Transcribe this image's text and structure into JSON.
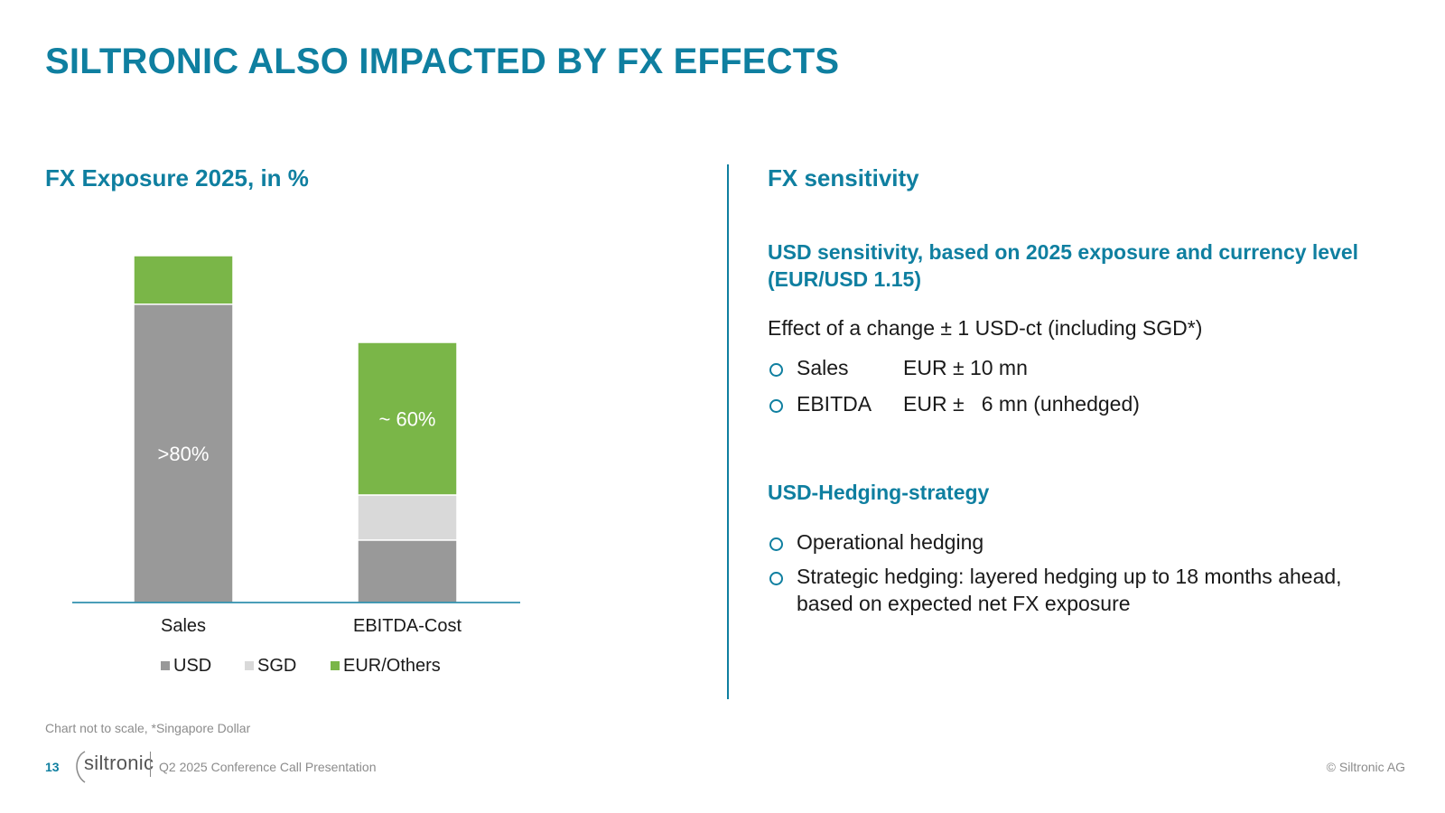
{
  "title": "SILTRONIC ALSO IMPACTED BY FX EFFECTS",
  "left": {
    "heading_bold": "FX Exposure 2025,",
    "heading_rest": " in %",
    "footnote": "Chart not to scale, *Singapore Dollar"
  },
  "colors": {
    "accent": "#0f7fa0",
    "usd": "#999999",
    "sgd": "#d9d9d9",
    "eur": "#7ab648"
  },
  "chart_data": {
    "type": "bar",
    "stacked": true,
    "categories": [
      "Sales",
      "EBITDA-Cost"
    ],
    "series": [
      {
        "name": "USD",
        "color": "#999999",
        "values": [
          86,
          18
        ]
      },
      {
        "name": "SGD",
        "color": "#d9d9d9",
        "values": [
          0,
          13
        ]
      },
      {
        "name": "EUR/Others",
        "color": "#7ab648",
        "values": [
          14,
          44
        ]
      }
    ],
    "data_labels": [
      {
        "category": "Sales",
        "series": "USD",
        "text": ">80%"
      },
      {
        "category": "EBITDA-Cost",
        "series": "EUR/Others",
        "text": "~ 60%"
      }
    ],
    "ylim": [
      0,
      100
    ],
    "legend_position": "bottom",
    "grid": false,
    "note": "Chart not to scale"
  },
  "right": {
    "heading": "FX sensitivity",
    "usd_heading_line1": "USD sensitivity, based on 2025 exposure and currency level",
    "usd_heading_line2": "(EUR/USD 1.15)",
    "effect_text": "Effect of a change ± 1 USD-ct (including SGD*)",
    "sensitivities": [
      {
        "label": "Sales",
        "value": "EUR ± 10 mn"
      },
      {
        "label": "EBITDA",
        "value": "EUR ±   6 mn (unhedged)"
      }
    ],
    "hedging_heading": "USD-Hedging-strategy",
    "hedging_items": [
      "Operational hedging",
      "Strategic hedging: layered hedging up to 18 months ahead, based on expected net FX exposure"
    ]
  },
  "footer": {
    "page_number": "13",
    "logo_text": "siltronic",
    "document": "Q2 2025 Conference Call Presentation",
    "copyright": "© Siltronic AG"
  }
}
